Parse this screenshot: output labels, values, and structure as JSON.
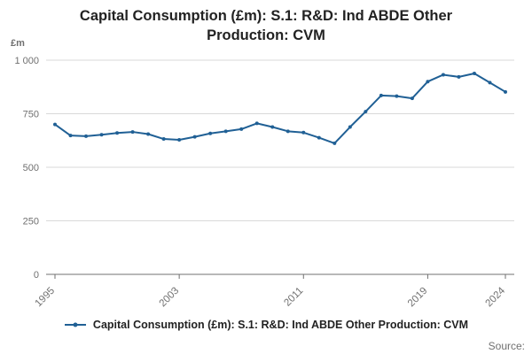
{
  "legend": {
    "label": "Capital Consumption (£m): S.1: R&D: Ind ABDE Other Production: CVM"
  },
  "footer": {
    "source": "Source:"
  },
  "chart_data": {
    "type": "line",
    "title": "Capital Consumption (£m): S.1: R&D: Ind ABDE Other Production: CVM",
    "xlabel": "",
    "ylabel": "£m",
    "x": [
      1995,
      1996,
      1997,
      1998,
      1999,
      2000,
      2001,
      2002,
      2003,
      2004,
      2005,
      2006,
      2007,
      2008,
      2009,
      2010,
      2011,
      2012,
      2013,
      2014,
      2015,
      2016,
      2017,
      2018,
      2019,
      2020,
      2021,
      2022,
      2023,
      2024
    ],
    "values": [
      700,
      648,
      645,
      652,
      660,
      665,
      655,
      632,
      628,
      642,
      658,
      668,
      678,
      705,
      688,
      668,
      662,
      638,
      612,
      688,
      760,
      835,
      832,
      822,
      900,
      932,
      922,
      938,
      895,
      852
    ],
    "ylim": [
      0,
      1000
    ],
    "yticks": [
      0,
      250,
      500,
      750,
      1000
    ],
    "ytick_labels": [
      "0",
      "250",
      "500",
      "750",
      "1 000"
    ],
    "xticks": [
      1995,
      2003,
      2011,
      2019,
      2024
    ],
    "grid": true,
    "legend_position": "bottom",
    "line_color": "#206095",
    "grid_color": "#d9d9d9",
    "axis_color": "#707070",
    "tick_label_color": "#707070"
  }
}
